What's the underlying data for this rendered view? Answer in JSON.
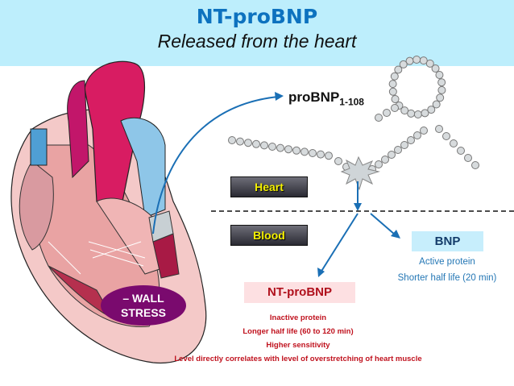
{
  "header": {
    "title": "NT-proBNP",
    "subtitle": "Released from the heart",
    "background": "#bdeefc"
  },
  "diagram": {
    "propeptide": {
      "label": "proBNP",
      "subscript": "1-108"
    },
    "compartments": {
      "heart": "Heart",
      "blood": "Blood"
    },
    "heart_icon": "heart-anatomy",
    "stress_label": "– WALL STRESS",
    "stress_lines": [
      "– WALL",
      "STRESS"
    ],
    "bnp": {
      "title": "BNP",
      "lines": [
        "Active protein",
        "Shorter half life (20 min)"
      ]
    },
    "nt_probnp": {
      "title": "NT-proBNP",
      "lines": [
        "Inactive protein",
        "Longer half life (60 to 120 min)",
        "Higher sensitivity",
        "Level directly correlates with level of overstretching of heart muscle"
      ]
    },
    "colors": {
      "arrow": "#1a6fb5",
      "nt_text": "#c0121e",
      "bnp_text": "#2477b5",
      "stress": "#7a0a6e"
    }
  }
}
